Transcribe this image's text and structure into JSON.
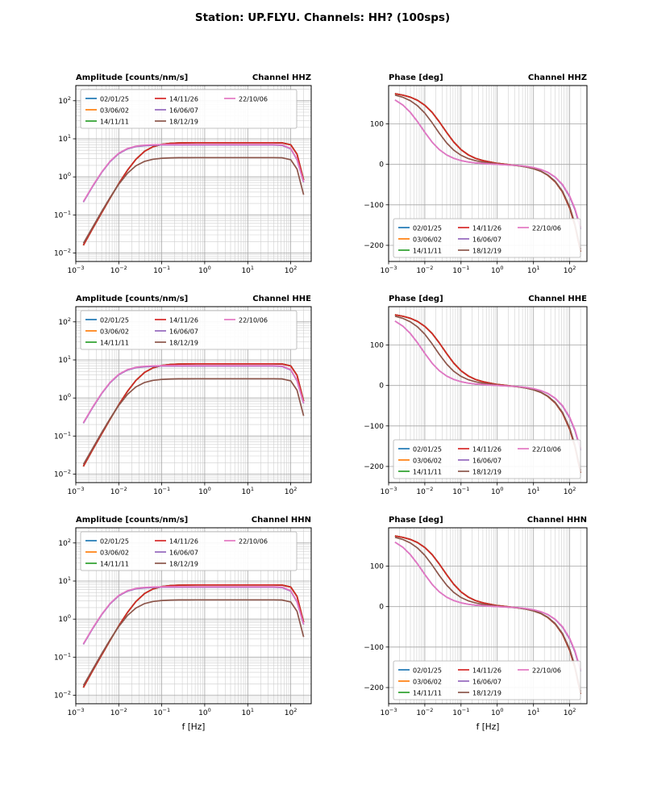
{
  "suptitle": "Station: UP.FLYU. Channels: HH? (100sps)",
  "xlabel": "f [Hz]",
  "channels": [
    "HHZ",
    "HHE",
    "HHN"
  ],
  "legend_labels": [
    "02/01/25",
    "03/06/02",
    "14/11/11",
    "14/11/26",
    "16/06/07",
    "18/12/19",
    "22/10/06"
  ],
  "colors": {
    "blue": "#1f77b4",
    "orange": "#ff7f0e",
    "green": "#2ca02c",
    "red": "#d62728",
    "purple": "#9467bd",
    "brown": "#8c564b",
    "pink": "#e377c2",
    "grid_major": "#a6a6a6",
    "grid_minor": "#cfcfcf",
    "axes": "#000000",
    "legend_border": "#b0b0b0"
  },
  "chart_data": [
    {
      "type": "line",
      "channel": "HHZ",
      "title_left": "Amplitude [counts/nm/s]",
      "title_right": "Channel HHZ",
      "dataset": "amplitude",
      "legend_position": "upper left",
      "xlabel": ""
    },
    {
      "type": "line",
      "channel": "HHZ",
      "title_left": "Phase [deg]",
      "title_right": "Channel HHZ",
      "dataset": "phase",
      "legend_position": "lower left",
      "xlabel": ""
    },
    {
      "type": "line",
      "channel": "HHE",
      "title_left": "Amplitude [counts/nm/s]",
      "title_right": "Channel HHE",
      "dataset": "amplitude",
      "legend_position": "upper left",
      "xlabel": ""
    },
    {
      "type": "line",
      "channel": "HHE",
      "title_left": "Phase [deg]",
      "title_right": "Channel HHE",
      "dataset": "phase",
      "legend_position": "lower left",
      "xlabel": ""
    },
    {
      "type": "line",
      "channel": "HHN",
      "title_left": "Amplitude [counts/nm/s]",
      "title_right": "Channel HHN",
      "dataset": "amplitude",
      "legend_position": "upper left",
      "xlabel": "f [Hz]"
    },
    {
      "type": "line",
      "channel": "HHN",
      "title_left": "Phase [deg]",
      "title_right": "Channel HHN",
      "dataset": "phase",
      "legend_position": "lower left",
      "xlabel": "f [Hz]"
    }
  ],
  "datasets": {
    "amplitude": {
      "xscale": "log",
      "yscale": "log",
      "xlim": [
        0.001,
        300
      ],
      "ylim": [
        0.006,
        250
      ],
      "x_tick_exp": [
        -3,
        -2,
        -1,
        0,
        1,
        2
      ],
      "y_tick_exp": [
        -2,
        -1,
        0,
        1,
        2
      ],
      "x_tick_labels": [
        "10^-3",
        "10^-2",
        "10^-1",
        "10^0",
        "10^1",
        "10^2"
      ],
      "y_tick_labels": [
        "10^-2",
        "10^-1",
        "10^0",
        "10^1",
        "10^2"
      ],
      "x": [
        0.0015,
        0.0025,
        0.004,
        0.0063,
        0.01,
        0.016,
        0.025,
        0.04,
        0.063,
        0.1,
        0.16,
        0.25,
        0.4,
        0.63,
        1,
        1.6,
        2.5,
        4,
        6.3,
        10,
        16,
        25,
        40,
        63,
        100,
        140,
        200
      ],
      "series": [
        {
          "name": "02/01/25",
          "color": "#1f77b4",
          "values": [
            0.016,
            0.045,
            0.114,
            0.278,
            0.664,
            1.5,
            2.88,
            4.7,
            6.2,
            7.12,
            7.58,
            7.77,
            7.85,
            7.88,
            7.89,
            7.9,
            7.9,
            7.9,
            7.9,
            7.9,
            7.9,
            7.9,
            7.9,
            7.84,
            6.97,
            3.95,
            0.83
          ]
        },
        {
          "name": "03/06/02",
          "color": "#ff7f0e",
          "values": [
            0.016,
            0.045,
            0.114,
            0.278,
            0.664,
            1.5,
            2.88,
            4.7,
            6.2,
            7.12,
            7.58,
            7.77,
            7.85,
            7.88,
            7.89,
            7.9,
            7.9,
            7.9,
            7.9,
            7.9,
            7.9,
            7.9,
            7.9,
            7.84,
            6.97,
            3.95,
            0.83
          ]
        },
        {
          "name": "14/11/11",
          "color": "#2ca02c",
          "values": [
            0.016,
            0.045,
            0.114,
            0.278,
            0.664,
            1.5,
            2.88,
            4.7,
            6.2,
            7.12,
            7.58,
            7.77,
            7.85,
            7.88,
            7.89,
            7.9,
            7.9,
            7.9,
            7.9,
            7.9,
            7.9,
            7.9,
            7.9,
            7.84,
            6.97,
            3.95,
            0.83
          ]
        },
        {
          "name": "14/11/26",
          "color": "#d62728",
          "values": [
            0.016,
            0.045,
            0.114,
            0.278,
            0.664,
            1.5,
            2.88,
            4.7,
            6.2,
            7.12,
            7.58,
            7.77,
            7.85,
            7.88,
            7.89,
            7.9,
            7.9,
            7.9,
            7.9,
            7.9,
            7.9,
            7.9,
            7.9,
            7.84,
            6.97,
            3.95,
            0.83
          ]
        },
        {
          "name": "16/06/07",
          "color": "#9467bd",
          "values": [
            0.218,
            0.573,
            1.3,
            2.52,
            4.07,
            5.42,
            6.21,
            6.61,
            6.77,
            6.84,
            6.87,
            6.88,
            6.89,
            6.89,
            6.89,
            6.89,
            6.89,
            6.89,
            6.89,
            6.89,
            6.88,
            6.88,
            6.87,
            6.71,
            5.42,
            2.81,
            0.72
          ]
        },
        {
          "name": "18/12/19",
          "color": "#8c564b",
          "values": [
            0.018,
            0.049,
            0.123,
            0.289,
            0.64,
            1.25,
            1.95,
            2.56,
            2.91,
            3.08,
            3.15,
            3.18,
            3.19,
            3.2,
            3.2,
            3.2,
            3.2,
            3.2,
            3.2,
            3.2,
            3.2,
            3.2,
            3.2,
            3.17,
            2.82,
            1.6,
            0.34
          ]
        },
        {
          "name": "22/10/06",
          "color": "#e377c2",
          "values": [
            0.225,
            0.591,
            1.34,
            2.6,
            4.2,
            5.59,
            6.4,
            6.81,
            6.98,
            7.05,
            7.08,
            7.09,
            7.1,
            7.1,
            7.1,
            7.1,
            7.1,
            7.1,
            7.1,
            7.1,
            7.09,
            7.09,
            7.08,
            6.92,
            5.59,
            2.9,
            0.74
          ]
        }
      ]
    },
    "phase": {
      "xscale": "log",
      "yscale": "linear",
      "xlim": [
        0.001,
        300
      ],
      "ylim": [
        -240,
        195
      ],
      "x_tick_exp": [
        -3,
        -2,
        -1,
        0,
        1,
        2
      ],
      "y_ticks": [
        -200,
        -100,
        0,
        100
      ],
      "x_tick_labels": [
        "10^-3",
        "10^-2",
        "10^-1",
        "10^0",
        "10^1",
        "10^2"
      ],
      "y_tick_labels": [
        "-200",
        "-100",
        "0",
        "100"
      ],
      "x": [
        0.0015,
        0.0025,
        0.004,
        0.0063,
        0.01,
        0.016,
        0.025,
        0.04,
        0.063,
        0.1,
        0.16,
        0.25,
        0.4,
        0.63,
        1,
        1.6,
        2.5,
        4,
        6.3,
        10,
        16,
        25,
        40,
        63,
        100,
        140,
        200
      ],
      "series": [
        {
          "name": "02/01/25",
          "color": "#1f77b4",
          "values": [
            174.8,
            171.3,
            166.2,
            158.4,
            146.3,
            128.3,
            105.7,
            79.0,
            55.3,
            36.5,
            23.3,
            15.0,
            9.4,
            6.0,
            2.7,
            0.6,
            -1.2,
            -3.4,
            -6.2,
            -10.4,
            -17.0,
            -26.9,
            -43.1,
            -68.0,
            -108.0,
            -151.2,
            -216.0
          ]
        },
        {
          "name": "03/06/02",
          "color": "#ff7f0e",
          "values": [
            174.8,
            171.3,
            166.2,
            158.4,
            146.3,
            128.3,
            105.7,
            79.0,
            55.3,
            36.5,
            23.3,
            15.0,
            9.4,
            6.0,
            2.7,
            0.6,
            -1.2,
            -3.4,
            -6.2,
            -10.4,
            -17.0,
            -26.9,
            -43.1,
            -68.0,
            -108.0,
            -151.2,
            -216.0
          ]
        },
        {
          "name": "14/11/11",
          "color": "#2ca02c",
          "values": [
            174.8,
            171.3,
            166.2,
            158.4,
            146.3,
            128.3,
            105.7,
            79.0,
            55.3,
            36.5,
            23.3,
            15.0,
            9.4,
            6.0,
            2.7,
            0.6,
            -1.2,
            -3.4,
            -6.2,
            -10.4,
            -17.0,
            -26.9,
            -43.1,
            -68.0,
            -108.0,
            -151.2,
            -216.0
          ]
        },
        {
          "name": "14/11/26",
          "color": "#d62728",
          "values": [
            174.8,
            171.3,
            166.2,
            158.4,
            146.3,
            128.3,
            105.7,
            79.0,
            55.3,
            36.5,
            23.3,
            15.0,
            9.4,
            6.0,
            2.7,
            0.6,
            -1.2,
            -3.4,
            -6.2,
            -10.4,
            -17.0,
            -26.9,
            -43.1,
            -68.0,
            -108.0,
            -151.2,
            -216.0
          ]
        },
        {
          "name": "16/06/07",
          "color": "#9467bd",
          "values": [
            159.5,
            146.5,
            128.5,
            105.6,
            79.4,
            54.8,
            36.7,
            23.4,
            15.0,
            9.5,
            5.9,
            3.6,
            2.5,
            1.3,
            0.1,
            -0.8,
            -1.7,
            -3.0,
            -4.9,
            -7.9,
            -12.7,
            -19.9,
            -31.9,
            -50.4,
            -79.9,
            -111.9,
            -159.9
          ]
        },
        {
          "name": "18/12/19",
          "color": "#8c564b",
          "values": [
            171.4,
            165.8,
            157.4,
            145.0,
            126.9,
            102.7,
            77.3,
            53.1,
            35.2,
            22.6,
            14.3,
            9.2,
            5.7,
            3.6,
            1.2,
            -0.3,
            -1.7,
            -3.6,
            -6.3,
            -10.3,
            -16.7,
            -26.2,
            -41.9,
            -66.1,
            -104.9,
            -146.9,
            -209.9
          ]
        },
        {
          "name": "22/10/06",
          "color": "#e377c2",
          "values": [
            159.5,
            146.5,
            128.5,
            105.6,
            79.4,
            54.8,
            36.7,
            23.4,
            15.0,
            9.5,
            5.9,
            3.6,
            2.6,
            1.3,
            0.2,
            -0.7,
            -1.6,
            -2.9,
            -4.8,
            -7.7,
            -12.4,
            -19.4,
            -31.1,
            -49.1,
            -77.9,
            -109.1,
            -155.9
          ]
        }
      ]
    }
  }
}
